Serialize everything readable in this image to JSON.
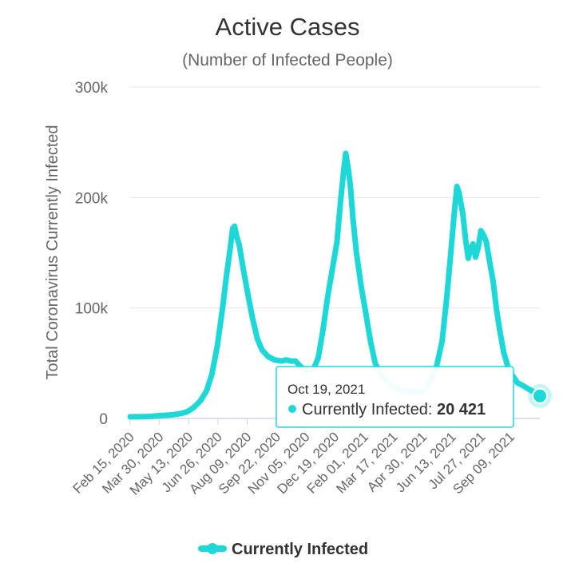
{
  "chart_data": {
    "type": "line",
    "title": "Active Cases",
    "subtitle": "(Number of Infected People)",
    "xlabel": "",
    "ylabel": "Total Coronavirus Currently Infected",
    "ylim": [
      0,
      300000
    ],
    "yticks": [
      0,
      100000,
      200000,
      300000
    ],
    "ytick_labels": [
      "0",
      "100k",
      "200k",
      "300k"
    ],
    "xlim": [
      "2020-02-15",
      "2021-10-19"
    ],
    "xtick_labels": [
      "Feb 15, 2020",
      "Mar 30, 2020",
      "May 13, 2020",
      "Jun 26, 2020",
      "Aug 09, 2020",
      "Sep 22, 2020",
      "Nov 05, 2020",
      "Dec 19, 2020",
      "Feb 01, 2021",
      "Mar 17, 2021",
      "Apr 30, 2021",
      "Jun 13, 2021",
      "Jul 27, 2021",
      "Sep 09, 2021"
    ],
    "grid": true,
    "legend_position": "bottom",
    "colors": {
      "series": "#1ed8d8",
      "grid": "#e6e6e6",
      "axis": "#ccd6eb"
    },
    "series": [
      {
        "name": "Currently Infected",
        "points": [
          [
            "2020-02-15",
            1500
          ],
          [
            "2020-03-01",
            1500
          ],
          [
            "2020-03-15",
            1800
          ],
          [
            "2020-03-30",
            2500
          ],
          [
            "2020-04-10",
            3000
          ],
          [
            "2020-04-20",
            3500
          ],
          [
            "2020-05-01",
            4500
          ],
          [
            "2020-05-10",
            6000
          ],
          [
            "2020-05-20",
            10000
          ],
          [
            "2020-05-30",
            16000
          ],
          [
            "2020-06-08",
            25000
          ],
          [
            "2020-06-16",
            40000
          ],
          [
            "2020-06-24",
            65000
          ],
          [
            "2020-07-02",
            100000
          ],
          [
            "2020-07-08",
            130000
          ],
          [
            "2020-07-13",
            152000
          ],
          [
            "2020-07-17",
            172000
          ],
          [
            "2020-07-20",
            174000
          ],
          [
            "2020-07-23",
            165000
          ],
          [
            "2020-07-27",
            157000
          ],
          [
            "2020-08-02",
            135000
          ],
          [
            "2020-08-09",
            112000
          ],
          [
            "2020-08-16",
            90000
          ],
          [
            "2020-08-23",
            72000
          ],
          [
            "2020-08-30",
            62000
          ],
          [
            "2020-09-08",
            56000
          ],
          [
            "2020-09-18",
            53000
          ],
          [
            "2020-09-28",
            52000
          ],
          [
            "2020-10-05",
            53000
          ],
          [
            "2020-10-12",
            52000
          ],
          [
            "2020-10-19",
            52000
          ],
          [
            "2020-10-25",
            48000
          ],
          [
            "2020-11-01",
            44000
          ],
          [
            "2020-11-08",
            43000
          ],
          [
            "2020-11-15",
            45000
          ],
          [
            "2020-11-22",
            55000
          ],
          [
            "2020-11-29",
            80000
          ],
          [
            "2020-12-06",
            110000
          ],
          [
            "2020-12-13",
            135000
          ],
          [
            "2020-12-20",
            160000
          ],
          [
            "2020-12-25",
            195000
          ],
          [
            "2020-12-30",
            225000
          ],
          [
            "2021-01-02",
            240000
          ],
          [
            "2021-01-06",
            225000
          ],
          [
            "2021-01-09",
            210000
          ],
          [
            "2021-01-13",
            180000
          ],
          [
            "2021-01-18",
            150000
          ],
          [
            "2021-01-25",
            120000
          ],
          [
            "2021-02-01",
            95000
          ],
          [
            "2021-02-08",
            70000
          ],
          [
            "2021-02-15",
            50000
          ],
          [
            "2021-02-25",
            38000
          ],
          [
            "2021-03-10",
            30000
          ],
          [
            "2021-03-25",
            26000
          ],
          [
            "2021-04-10",
            24000
          ],
          [
            "2021-04-25",
            24000
          ],
          [
            "2021-05-02",
            28000
          ],
          [
            "2021-05-10",
            35000
          ],
          [
            "2021-05-18",
            48000
          ],
          [
            "2021-05-26",
            70000
          ],
          [
            "2021-06-02",
            110000
          ],
          [
            "2021-06-08",
            150000
          ],
          [
            "2021-06-13",
            185000
          ],
          [
            "2021-06-17",
            210000
          ],
          [
            "2021-06-20",
            205000
          ],
          [
            "2021-06-23",
            195000
          ],
          [
            "2021-06-26",
            185000
          ],
          [
            "2021-06-30",
            162000
          ],
          [
            "2021-07-04",
            145000
          ],
          [
            "2021-07-07",
            152000
          ],
          [
            "2021-07-11",
            158000
          ],
          [
            "2021-07-15",
            146000
          ],
          [
            "2021-07-19",
            155000
          ],
          [
            "2021-07-23",
            170000
          ],
          [
            "2021-07-27",
            166000
          ],
          [
            "2021-07-31",
            160000
          ],
          [
            "2021-08-05",
            142000
          ],
          [
            "2021-08-10",
            125000
          ],
          [
            "2021-08-15",
            100000
          ],
          [
            "2021-08-20",
            80000
          ],
          [
            "2021-08-26",
            60000
          ],
          [
            "2021-09-02",
            45000
          ],
          [
            "2021-09-09",
            38000
          ],
          [
            "2021-09-16",
            32000
          ],
          [
            "2021-09-23",
            30000
          ],
          [
            "2021-10-01",
            27000
          ],
          [
            "2021-10-10",
            24000
          ],
          [
            "2021-10-19",
            20421
          ]
        ]
      }
    ],
    "tooltip": {
      "date": "Oct 19, 2021",
      "series_label": "Currently Infected: ",
      "value_text": "20 421"
    }
  }
}
